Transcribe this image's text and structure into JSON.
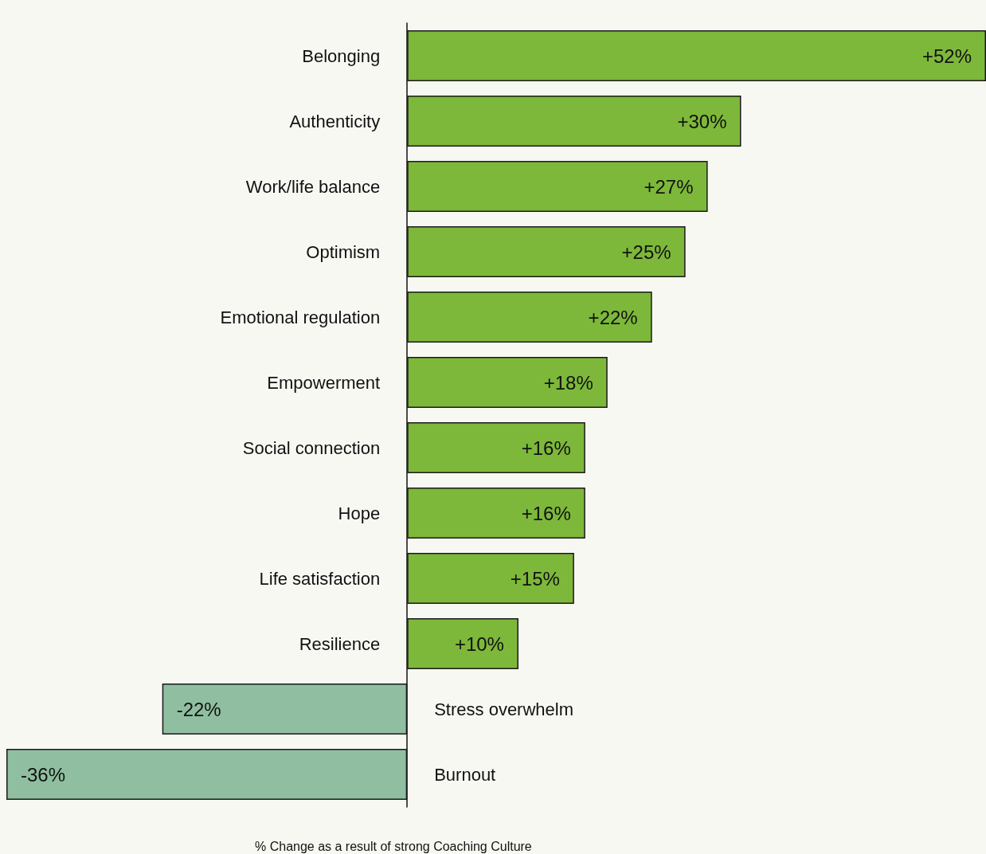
{
  "chart_data": {
    "type": "bar",
    "orientation": "horizontal",
    "xlabel": "% Change as a result of strong Coaching Culture",
    "categories": [
      "Belonging",
      "Authenticity",
      "Work/life balance",
      "Optimism",
      "Emotional regulation",
      "Empowerment",
      "Social connection",
      "Hope",
      "Life satisfaction",
      "Resilience",
      "Stress overwhelm",
      "Burnout"
    ],
    "values": [
      52,
      30,
      27,
      25,
      22,
      18,
      16,
      16,
      15,
      10,
      -22,
      -36
    ],
    "value_labels": [
      "+52%",
      "+30%",
      "+27%",
      "+25%",
      "+22%",
      "+18%",
      "+16%",
      "+16%",
      "+15%",
      "+10%",
      "-22%",
      "-36%"
    ],
    "colors": [
      "#7db83a",
      "#7db83a",
      "#7db83a",
      "#7db83a",
      "#7db83a",
      "#7db83a",
      "#7db83a",
      "#7db83a",
      "#7db83a",
      "#7db83a",
      "#8fbfa0",
      "#8fbfa0"
    ],
    "data_labels": true
  }
}
